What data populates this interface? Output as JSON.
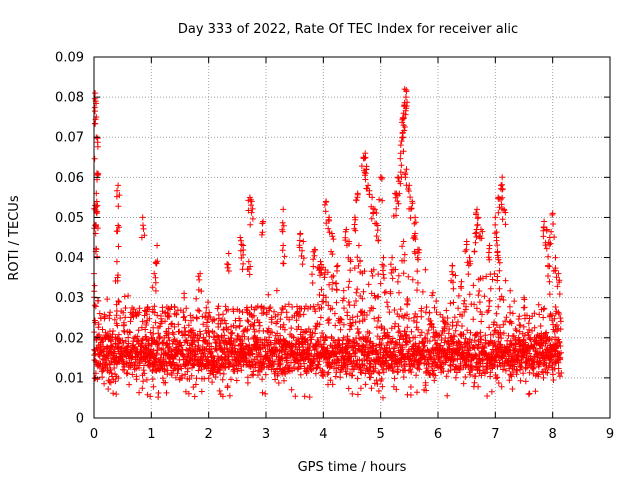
{
  "chart_data": {
    "type": "scatter",
    "title": "Day 333 of 2022, Rate Of TEC Index for receiver alic",
    "xlabel": "GPS time / hours",
    "ylabel": "ROTI / TECUs",
    "xlim": [
      0,
      9
    ],
    "ylim": [
      0,
      0.09
    ],
    "xticks": [
      "0",
      "1",
      "2",
      "3",
      "4",
      "5",
      "6",
      "7",
      "8",
      "9"
    ],
    "yticks": [
      "0",
      "0.01",
      "0.02",
      "0.03",
      "0.04",
      "0.05",
      "0.06",
      "0.07",
      "0.08",
      "0.09"
    ],
    "grid": true,
    "marker": "plus",
    "color": "#ff0000",
    "x_extent": [
      0,
      8.15
    ],
    "baseline_range": [
      0.005,
      0.022
    ],
    "spikes": [
      {
        "x": 0.02,
        "y": 0.081
      },
      {
        "x": 0.03,
        "y": 0.079
      },
      {
        "x": 0.04,
        "y": 0.07
      },
      {
        "x": 0.05,
        "y": 0.061
      },
      {
        "x": 0.04,
        "y": 0.056
      },
      {
        "x": 0.02,
        "y": 0.053
      },
      {
        "x": 0.06,
        "y": 0.053
      },
      {
        "x": 0.03,
        "y": 0.046
      },
      {
        "x": 0.0,
        "y": 0.036
      },
      {
        "x": 0.01,
        "y": 0.033
      },
      {
        "x": 0.42,
        "y": 0.058
      },
      {
        "x": 0.42,
        "y": 0.048
      },
      {
        "x": 0.4,
        "y": 0.039
      },
      {
        "x": 0.85,
        "y": 0.05
      },
      {
        "x": 1.1,
        "y": 0.043
      },
      {
        "x": 1.05,
        "y": 0.036
      },
      {
        "x": 1.85,
        "y": 0.036
      },
      {
        "x": 2.35,
        "y": 0.041
      },
      {
        "x": 2.55,
        "y": 0.045
      },
      {
        "x": 2.6,
        "y": 0.043
      },
      {
        "x": 2.72,
        "y": 0.055
      },
      {
        "x": 2.75,
        "y": 0.054
      },
      {
        "x": 2.7,
        "y": 0.039
      },
      {
        "x": 2.95,
        "y": 0.049
      },
      {
        "x": 3.3,
        "y": 0.052
      },
      {
        "x": 3.3,
        "y": 0.043
      },
      {
        "x": 3.6,
        "y": 0.046
      },
      {
        "x": 3.65,
        "y": 0.044
      },
      {
        "x": 3.85,
        "y": 0.042
      },
      {
        "x": 3.95,
        "y": 0.039
      },
      {
        "x": 4.05,
        "y": 0.054
      },
      {
        "x": 4.1,
        "y": 0.05
      },
      {
        "x": 4.15,
        "y": 0.046
      },
      {
        "x": 4.25,
        "y": 0.038
      },
      {
        "x": 4.4,
        "y": 0.047
      },
      {
        "x": 4.45,
        "y": 0.044
      },
      {
        "x": 4.55,
        "y": 0.05
      },
      {
        "x": 4.6,
        "y": 0.056
      },
      {
        "x": 4.62,
        "y": 0.043
      },
      {
        "x": 4.7,
        "y": 0.065
      },
      {
        "x": 4.73,
        "y": 0.066
      },
      {
        "x": 4.75,
        "y": 0.062
      },
      {
        "x": 4.78,
        "y": 0.058
      },
      {
        "x": 4.85,
        "y": 0.055
      },
      {
        "x": 4.9,
        "y": 0.052
      },
      {
        "x": 4.95,
        "y": 0.048
      },
      {
        "x": 5.0,
        "y": 0.06
      },
      {
        "x": 5.05,
        "y": 0.04
      },
      {
        "x": 5.25,
        "y": 0.056
      },
      {
        "x": 5.3,
        "y": 0.06
      },
      {
        "x": 5.32,
        "y": 0.059
      },
      {
        "x": 5.35,
        "y": 0.066
      },
      {
        "x": 5.38,
        "y": 0.071
      },
      {
        "x": 5.4,
        "y": 0.073
      },
      {
        "x": 5.4,
        "y": 0.076
      },
      {
        "x": 5.41,
        "y": 0.078
      },
      {
        "x": 5.42,
        "y": 0.082
      },
      {
        "x": 5.44,
        "y": 0.08
      },
      {
        "x": 5.45,
        "y": 0.062
      },
      {
        "x": 5.5,
        "y": 0.058
      },
      {
        "x": 5.55,
        "y": 0.054
      },
      {
        "x": 5.6,
        "y": 0.05
      },
      {
        "x": 5.6,
        "y": 0.046
      },
      {
        "x": 5.65,
        "y": 0.042
      },
      {
        "x": 5.4,
        "y": 0.044
      },
      {
        "x": 5.2,
        "y": 0.04
      },
      {
        "x": 6.25,
        "y": 0.038
      },
      {
        "x": 6.5,
        "y": 0.044
      },
      {
        "x": 6.55,
        "y": 0.04
      },
      {
        "x": 6.65,
        "y": 0.046
      },
      {
        "x": 6.68,
        "y": 0.052
      },
      {
        "x": 6.7,
        "y": 0.05
      },
      {
        "x": 6.75,
        "y": 0.047
      },
      {
        "x": 6.9,
        "y": 0.043
      },
      {
        "x": 7.0,
        "y": 0.05
      },
      {
        "x": 7.02,
        "y": 0.045
      },
      {
        "x": 7.05,
        "y": 0.055
      },
      {
        "x": 7.1,
        "y": 0.058
      },
      {
        "x": 7.12,
        "y": 0.06
      },
      {
        "x": 7.15,
        "y": 0.052
      },
      {
        "x": 7.05,
        "y": 0.04
      },
      {
        "x": 7.5,
        "y": 0.03
      },
      {
        "x": 7.85,
        "y": 0.049
      },
      {
        "x": 7.9,
        "y": 0.047
      },
      {
        "x": 7.95,
        "y": 0.045
      },
      {
        "x": 8.0,
        "y": 0.051
      },
      {
        "x": 7.92,
        "y": 0.038
      },
      {
        "x": 8.05,
        "y": 0.04
      },
      {
        "x": 8.1,
        "y": 0.036
      }
    ]
  }
}
